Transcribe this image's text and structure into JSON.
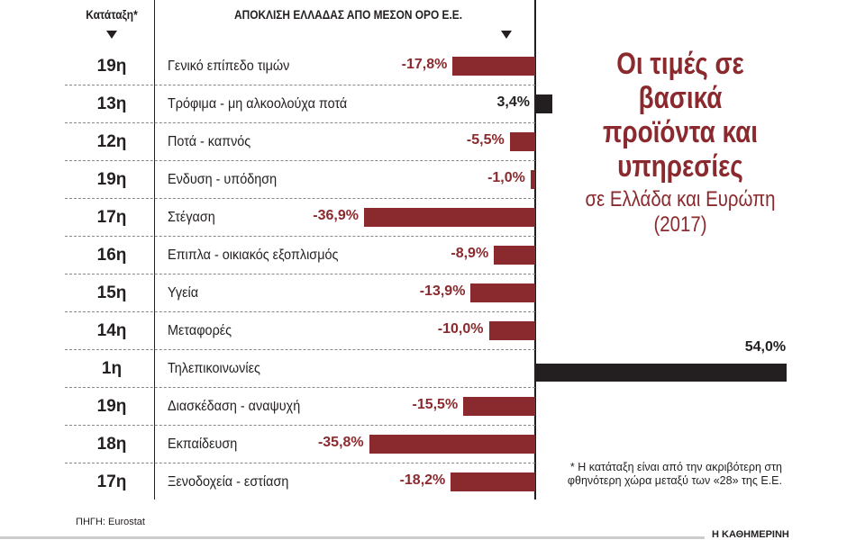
{
  "header": {
    "rank_label": "Κατάταξη*",
    "deviation_label": "ΑΠΟΚΛΙΣΗ ΕΛΛΑΔΑΣ ΑΠΟ ΜΕΣΟΝ ΟΡΟ Ε.Ε."
  },
  "title": "Οι τιμές σε βασικά προϊόντα και υπηρεσίες",
  "subtitle": "σε Ελλάδα και Ευρώπη (2017)",
  "footnote": "* Η κατάταξη είναι από την ακριβότερη στη φθηνότερη χώρα μεταξύ των «28» της Ε.Ε.",
  "source": "ΠΗΓΗ: Eurostat",
  "brand": "Η ΚΑΘΗΜΕΡΙΝΗ",
  "colors": {
    "negative": "#8b2a2e",
    "positive": "#231f20"
  },
  "chart_data": {
    "type": "bar",
    "orientation": "horizontal",
    "title": "Οι τιμές σε βασικά προϊόντα και υπηρεσίες σε Ελλάδα και Ευρώπη (2017)",
    "xlabel": "ΑΠΟΚΛΙΣΗ ΕΛΛΑΔΑΣ ΑΠΟ ΜΕΣΟΝ ΟΡΟ Ε.Ε.",
    "unit": "%",
    "xlim": [
      -40,
      55
    ],
    "categories": [
      "Γενικό επίπεδο τιμών",
      "Τρόφιμα - μη αλκοολούχα ποτά",
      "Ποτά - καπνός",
      "Ενδυση - υπόδηση",
      "Στέγαση",
      "Επιπλα - οικιακός εξοπλισμός",
      "Υγεία",
      "Μεταφορές",
      "Τηλεπικοινωνίες",
      "Διασκέδαση - αναψυχή",
      "Εκπαίδευση",
      "Ξενοδοχεία - εστίαση"
    ],
    "ranks": [
      "19η",
      "13η",
      "12η",
      "19η",
      "17η",
      "16η",
      "15η",
      "14η",
      "1η",
      "19η",
      "18η",
      "17η"
    ],
    "values": [
      -17.8,
      3.4,
      -5.5,
      -1.0,
      -36.9,
      -8.9,
      -13.9,
      -10.0,
      54.0,
      -15.5,
      -35.8,
      -18.2
    ],
    "labels": [
      "-17,8%",
      "3,4%",
      "-5,5%",
      "-1,0%",
      "-36,9%",
      "-8,9%",
      "-13,9%",
      "-10,0%",
      "54,0%",
      "-15,5%",
      "-35,8%",
      "-18,2%"
    ]
  }
}
